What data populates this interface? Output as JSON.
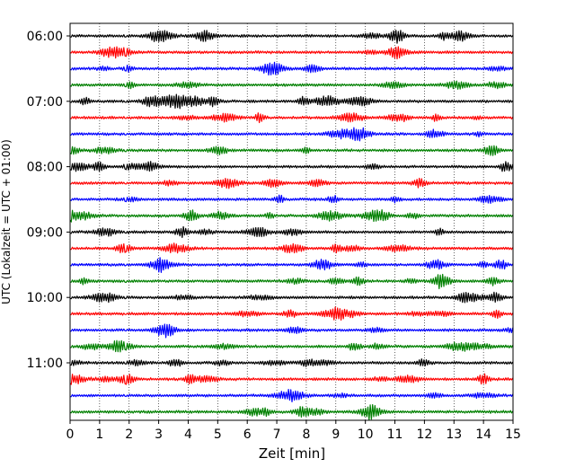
{
  "chart_data": {
    "type": "line",
    "subtype": "helicorder",
    "xlabel": "Zeit  [min]",
    "ylabel": "UTC (Lokalzeit = UTC + 01:00)",
    "xlim": [
      0,
      15
    ],
    "x_ticks": [
      "0",
      "1",
      "2",
      "3",
      "4",
      "5",
      "6",
      "7",
      "8",
      "9",
      "10",
      "11",
      "12",
      "13",
      "14",
      "15"
    ],
    "y_tick_labels": [
      "06:00",
      "07:00",
      "08:00",
      "09:00",
      "10:00",
      "11:00"
    ],
    "trace_interval_minutes": 15,
    "trace_start_times": [
      "06:00",
      "06:15",
      "06:30",
      "06:45",
      "07:00",
      "07:15",
      "07:30",
      "07:45",
      "08:00",
      "08:15",
      "08:30",
      "08:45",
      "09:00",
      "09:15",
      "09:30",
      "09:45",
      "10:00",
      "10:15",
      "10:30",
      "10:45",
      "11:00",
      "11:15",
      "11:30",
      "11:45"
    ],
    "color_cycle": [
      "#000000",
      "#ff0000",
      "#0000ff",
      "#008000"
    ],
    "vertical_grid": "dotted at every minute",
    "horizontal_grid": false
  }
}
